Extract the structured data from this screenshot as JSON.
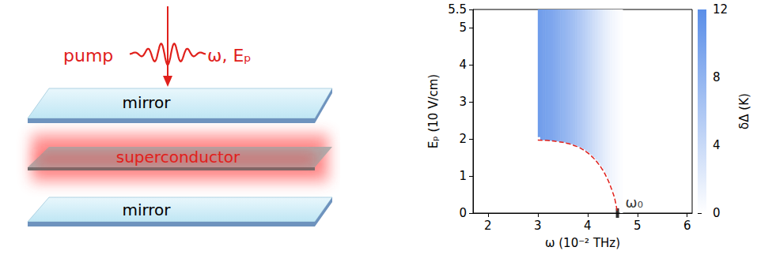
{
  "diagram": {
    "pump_label": "pump",
    "pump_params": "ω, Eₚ",
    "layers": [
      "mirror",
      "superconductor",
      "mirror"
    ]
  },
  "chart_data": {
    "type": "heatmap",
    "x_label": "ω (10⁻² THz)",
    "y_label": "Eₚ (10 V/cm)",
    "xlim": [
      1.7,
      6.1
    ],
    "xticks": [
      2,
      3,
      4,
      5,
      6
    ],
    "ylim": [
      0,
      5.5
    ],
    "yticks": [
      0,
      1,
      2,
      3,
      4,
      5
    ],
    "cells": {
      "omega_edges": [
        3.0,
        3.05,
        3.1,
        3.15,
        3.2,
        3.25,
        3.3,
        3.35,
        3.4,
        3.45,
        3.5,
        3.55,
        3.6,
        3.65,
        3.7,
        3.75,
        3.8,
        3.85,
        3.9,
        3.95,
        4.0,
        4.05,
        4.1,
        4.15,
        4.2,
        4.25,
        4.3,
        4.35,
        4.4,
        4.45,
        4.5,
        4.55,
        4.6,
        4.65,
        4.7
      ],
      "e_min": [
        2.05,
        1.97,
        1.97,
        1.96,
        1.96,
        1.95,
        1.95,
        1.94,
        1.93,
        1.92,
        1.91,
        1.9,
        1.88,
        1.86,
        1.84,
        1.82,
        1.79,
        1.76,
        1.72,
        1.68,
        1.63,
        1.57,
        1.51,
        1.44,
        1.36,
        1.27,
        1.17,
        1.05,
        0.92,
        0.76,
        0.58,
        0.36,
        0.12,
        0
      ],
      "delta": [
        10.4,
        10.2,
        10.0,
        9.8,
        9.6,
        9.4,
        9.1,
        8.8,
        8.5,
        8.2,
        7.9,
        7.6,
        7.3,
        7.0,
        6.7,
        6.4,
        6.0,
        5.6,
        5.2,
        4.8,
        4.4,
        4.0,
        3.6,
        3.2,
        2.8,
        2.4,
        2.0,
        1.7,
        1.4,
        1.1,
        0.8,
        0.6,
        0.4,
        0.2
      ]
    },
    "boundary": {
      "x": [
        3.0,
        3.2,
        3.4,
        3.6,
        3.8,
        3.9,
        4.0,
        4.1,
        4.2,
        4.3,
        4.4,
        4.45,
        4.5,
        4.55,
        4.6
      ],
      "y": [
        1.97,
        1.96,
        1.93,
        1.88,
        1.79,
        1.72,
        1.63,
        1.51,
        1.36,
        1.17,
        0.92,
        0.76,
        0.58,
        0.36,
        0.0
      ],
      "color": "#e0201b",
      "line_style": "dashed"
    },
    "annotation": {
      "text": "ω₀",
      "x": 4.6
    },
    "colorbar": {
      "label": "δΔ (K)",
      "range": [
        0,
        12
      ],
      "ticks": [
        0,
        4,
        8,
        12
      ],
      "colors": [
        "#ffffff",
        "#5a8ee8"
      ]
    }
  }
}
